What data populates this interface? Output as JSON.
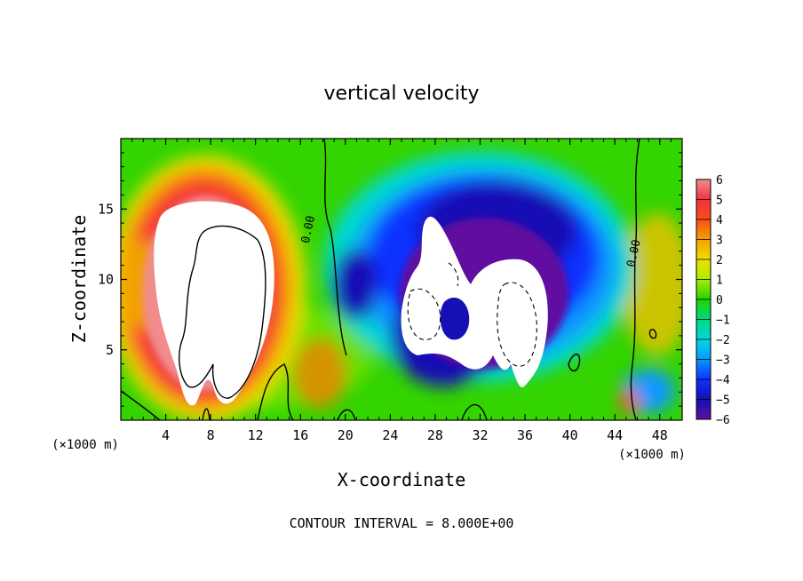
{
  "chart_data": {
    "type": "heatmap",
    "title": "vertical velocity",
    "xlabel": "X-coordinate",
    "ylabel": "Z-coordinate",
    "x_unit": "(×1000 m)",
    "z_unit": "(×1000 m)",
    "xlim": [
      0,
      50
    ],
    "ylim": [
      0,
      20
    ],
    "x_ticks": [
      4,
      8,
      12,
      16,
      20,
      24,
      28,
      32,
      36,
      40,
      44,
      48
    ],
    "y_ticks": [
      5,
      10,
      15
    ],
    "footer": "CONTOUR INTERVAL = 8.000E+00",
    "contour_labels": [
      {
        "text": "0.00",
        "x": 17.0,
        "z": 13.5
      },
      {
        "text": "0.00",
        "x": 46.0,
        "z": 11.8
      }
    ],
    "colorbar": {
      "levels": [
        6,
        5,
        4,
        3,
        2,
        1,
        0,
        -1,
        -2,
        -3,
        -4,
        -5,
        -6
      ],
      "labels": [
        "6",
        "5",
        "4",
        "3",
        "2",
        "1",
        "0",
        "−1",
        "−2",
        "−3",
        "−4",
        "−5",
        "−6"
      ],
      "colors": [
        "#f08c8c",
        "#f4303c",
        "#f85018",
        "#f4a000",
        "#f0e000",
        "#a8ec00",
        "#20d400",
        "#00d880",
        "#00d8e0",
        "#0898ff",
        "#1030ff",
        "#1410b4",
        "#6010a0"
      ]
    },
    "features": [
      {
        "kind": "updraft-core",
        "x_center": 9.0,
        "z_center": 10.5,
        "value_min": 6
      },
      {
        "kind": "downdraft-core",
        "x_center": 32.0,
        "z_center": 7.5,
        "value_max": -6
      }
    ]
  }
}
